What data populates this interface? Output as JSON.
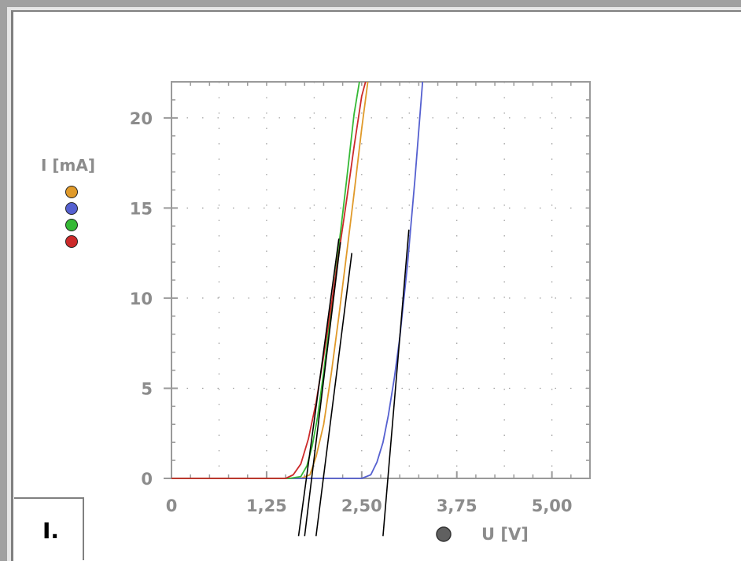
{
  "legend": {
    "title": "I [mA]",
    "series_colors": [
      "#e09a2a",
      "#5560d0",
      "#35b935",
      "#cc2a2a"
    ]
  },
  "mode_label": "I.",
  "x_axis_title": "U [V]",
  "x_axis_marker_color": "#606060",
  "chart_data": {
    "type": "line",
    "xlabel": "U [V]",
    "ylabel": "I [mA]",
    "xlim": [
      0,
      5.5
    ],
    "ylim": [
      0,
      22
    ],
    "x_ticks": [
      {
        "value": 0,
        "label": "0"
      },
      {
        "value": 1.25,
        "label": "1,25"
      },
      {
        "value": 2.5,
        "label": "2,50"
      },
      {
        "value": 3.75,
        "label": "3,75"
      },
      {
        "value": 5.0,
        "label": "5,00"
      }
    ],
    "y_ticks": [
      {
        "value": 0,
        "label": "0"
      },
      {
        "value": 5,
        "label": "5"
      },
      {
        "value": 10,
        "label": "10"
      },
      {
        "value": 15,
        "label": "15"
      },
      {
        "value": 20,
        "label": "20"
      }
    ],
    "grid": true,
    "series": [
      {
        "color": "#e09a2a",
        "x": [
          0,
          1.5,
          1.7,
          1.82,
          1.9,
          2.0,
          2.1,
          2.2,
          2.3,
          2.4,
          2.5,
          2.58
        ],
        "y": [
          0,
          0,
          0,
          0.2,
          1.2,
          3.0,
          5.8,
          9.0,
          12.4,
          15.8,
          19.4,
          22
        ]
      },
      {
        "color": "#5560d0",
        "x": [
          0,
          2.5,
          2.62,
          2.7,
          2.78,
          2.85,
          2.93,
          3.0,
          3.1,
          3.2,
          3.3
        ],
        "y": [
          0,
          0,
          0.2,
          0.9,
          2.0,
          3.5,
          5.6,
          7.8,
          11.8,
          16.6,
          22
        ]
      },
      {
        "color": "#35b935",
        "x": [
          0,
          1.55,
          1.7,
          1.78,
          1.85,
          1.92,
          2.0,
          2.1,
          2.2,
          2.3,
          2.4,
          2.47
        ],
        "y": [
          0,
          0,
          0.1,
          0.7,
          1.8,
          3.4,
          5.9,
          9.3,
          12.9,
          16.5,
          20.2,
          22
        ]
      },
      {
        "color": "#cc2a2a",
        "x": [
          0,
          1.5,
          1.6,
          1.7,
          1.8,
          1.9,
          2.0,
          2.1,
          2.2,
          2.3,
          2.4,
          2.5,
          2.55
        ],
        "y": [
          0,
          0,
          0.2,
          0.8,
          2.2,
          4.2,
          6.8,
          9.6,
          12.5,
          15.4,
          18.4,
          21.2,
          22
        ]
      }
    ],
    "tangent_lines": [
      {
        "x": [
          1.67,
          2.2
        ],
        "y": [
          -3.2,
          13.3
        ]
      },
      {
        "x": [
          1.75,
          2.22
        ],
        "y": [
          -3.2,
          13.1
        ]
      },
      {
        "x": [
          1.9,
          2.37
        ],
        "y": [
          -3.2,
          12.5
        ]
      },
      {
        "x": [
          2.78,
          3.12
        ],
        "y": [
          -3.2,
          13.8
        ]
      }
    ]
  }
}
